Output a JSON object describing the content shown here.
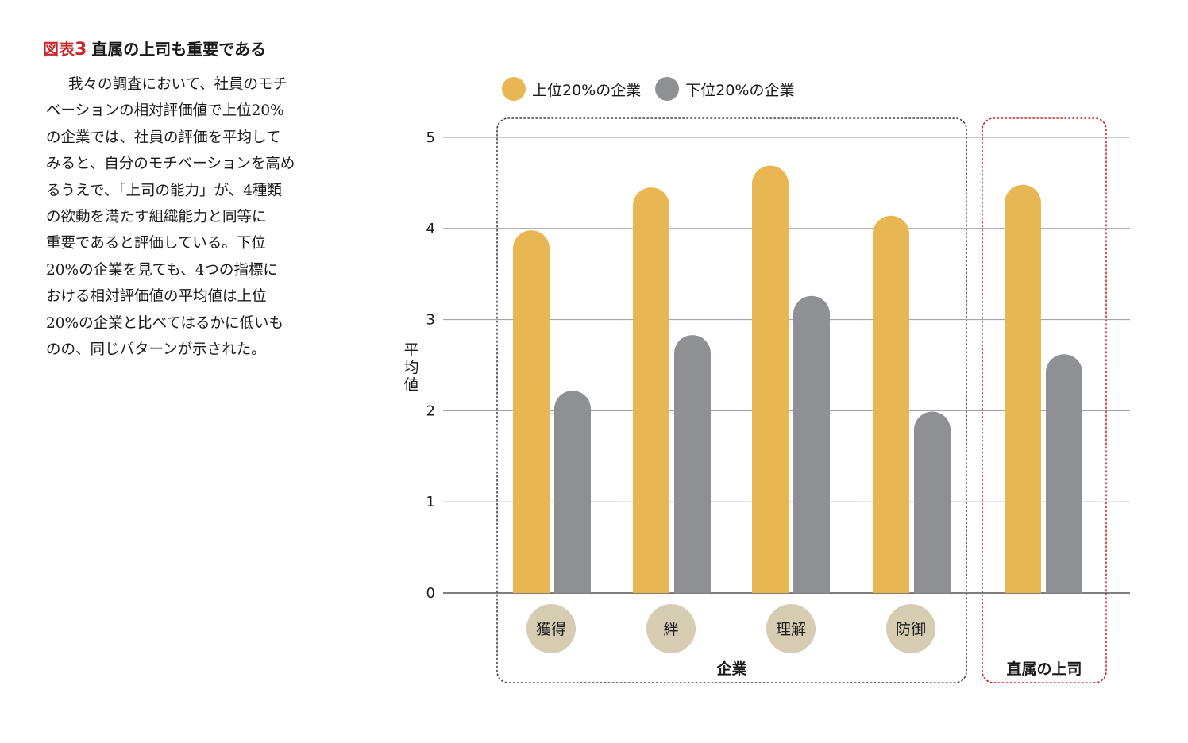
{
  "figure": {
    "label_prefix": "図表",
    "label_number": "3",
    "title": "直属の上司も重要である"
  },
  "body_text": [
    "我々の調査において、社員のモチ",
    "ベーションの相対評価値で上位20%",
    "の企業では、社員の評価を平均して",
    "みると、自分のモチベーションを高め",
    "るうえで、「上司の能力」が、4種類",
    "の欲動を満たす組織能力と同等に",
    "重要であると評価している。下位",
    "20%の企業を見ても、4つの指標に",
    "おける相対評価値の平均値は上位",
    "20%の企業と比べてはるかに低いも",
    "のの、同じパターンが示された。"
  ],
  "legend": [
    {
      "label": "上位20%の企業",
      "color": "#e8b652"
    },
    {
      "label": "下位20%の企業",
      "color": "#8e9094"
    }
  ],
  "chart_data": {
    "type": "bar",
    "ylabel": "平均値",
    "ylim": [
      0,
      5
    ],
    "yticks": [
      "0",
      "1",
      "2",
      "3",
      "4",
      "5"
    ],
    "categories": [
      "獲得",
      "絆",
      "理解",
      "防御",
      "直属の上司"
    ],
    "series": [
      {
        "name": "上位20%の企業",
        "color": "#e8b652",
        "values": [
          3.98,
          4.45,
          4.69,
          4.14,
          4.48
        ]
      },
      {
        "name": "下位20%の企業",
        "color": "#8e9094",
        "values": [
          2.22,
          2.83,
          3.26,
          1.99,
          2.62
        ]
      }
    ],
    "groups": [
      {
        "label": "企業",
        "categories": [
          "獲得",
          "絆",
          "理解",
          "防御"
        ],
        "border_color": "#444444"
      },
      {
        "label": "直属の上司",
        "categories": [
          "直属の上司"
        ],
        "border_color": "#c8282b"
      }
    ],
    "category_badge_color": "#d6ccb1",
    "grid": true
  }
}
